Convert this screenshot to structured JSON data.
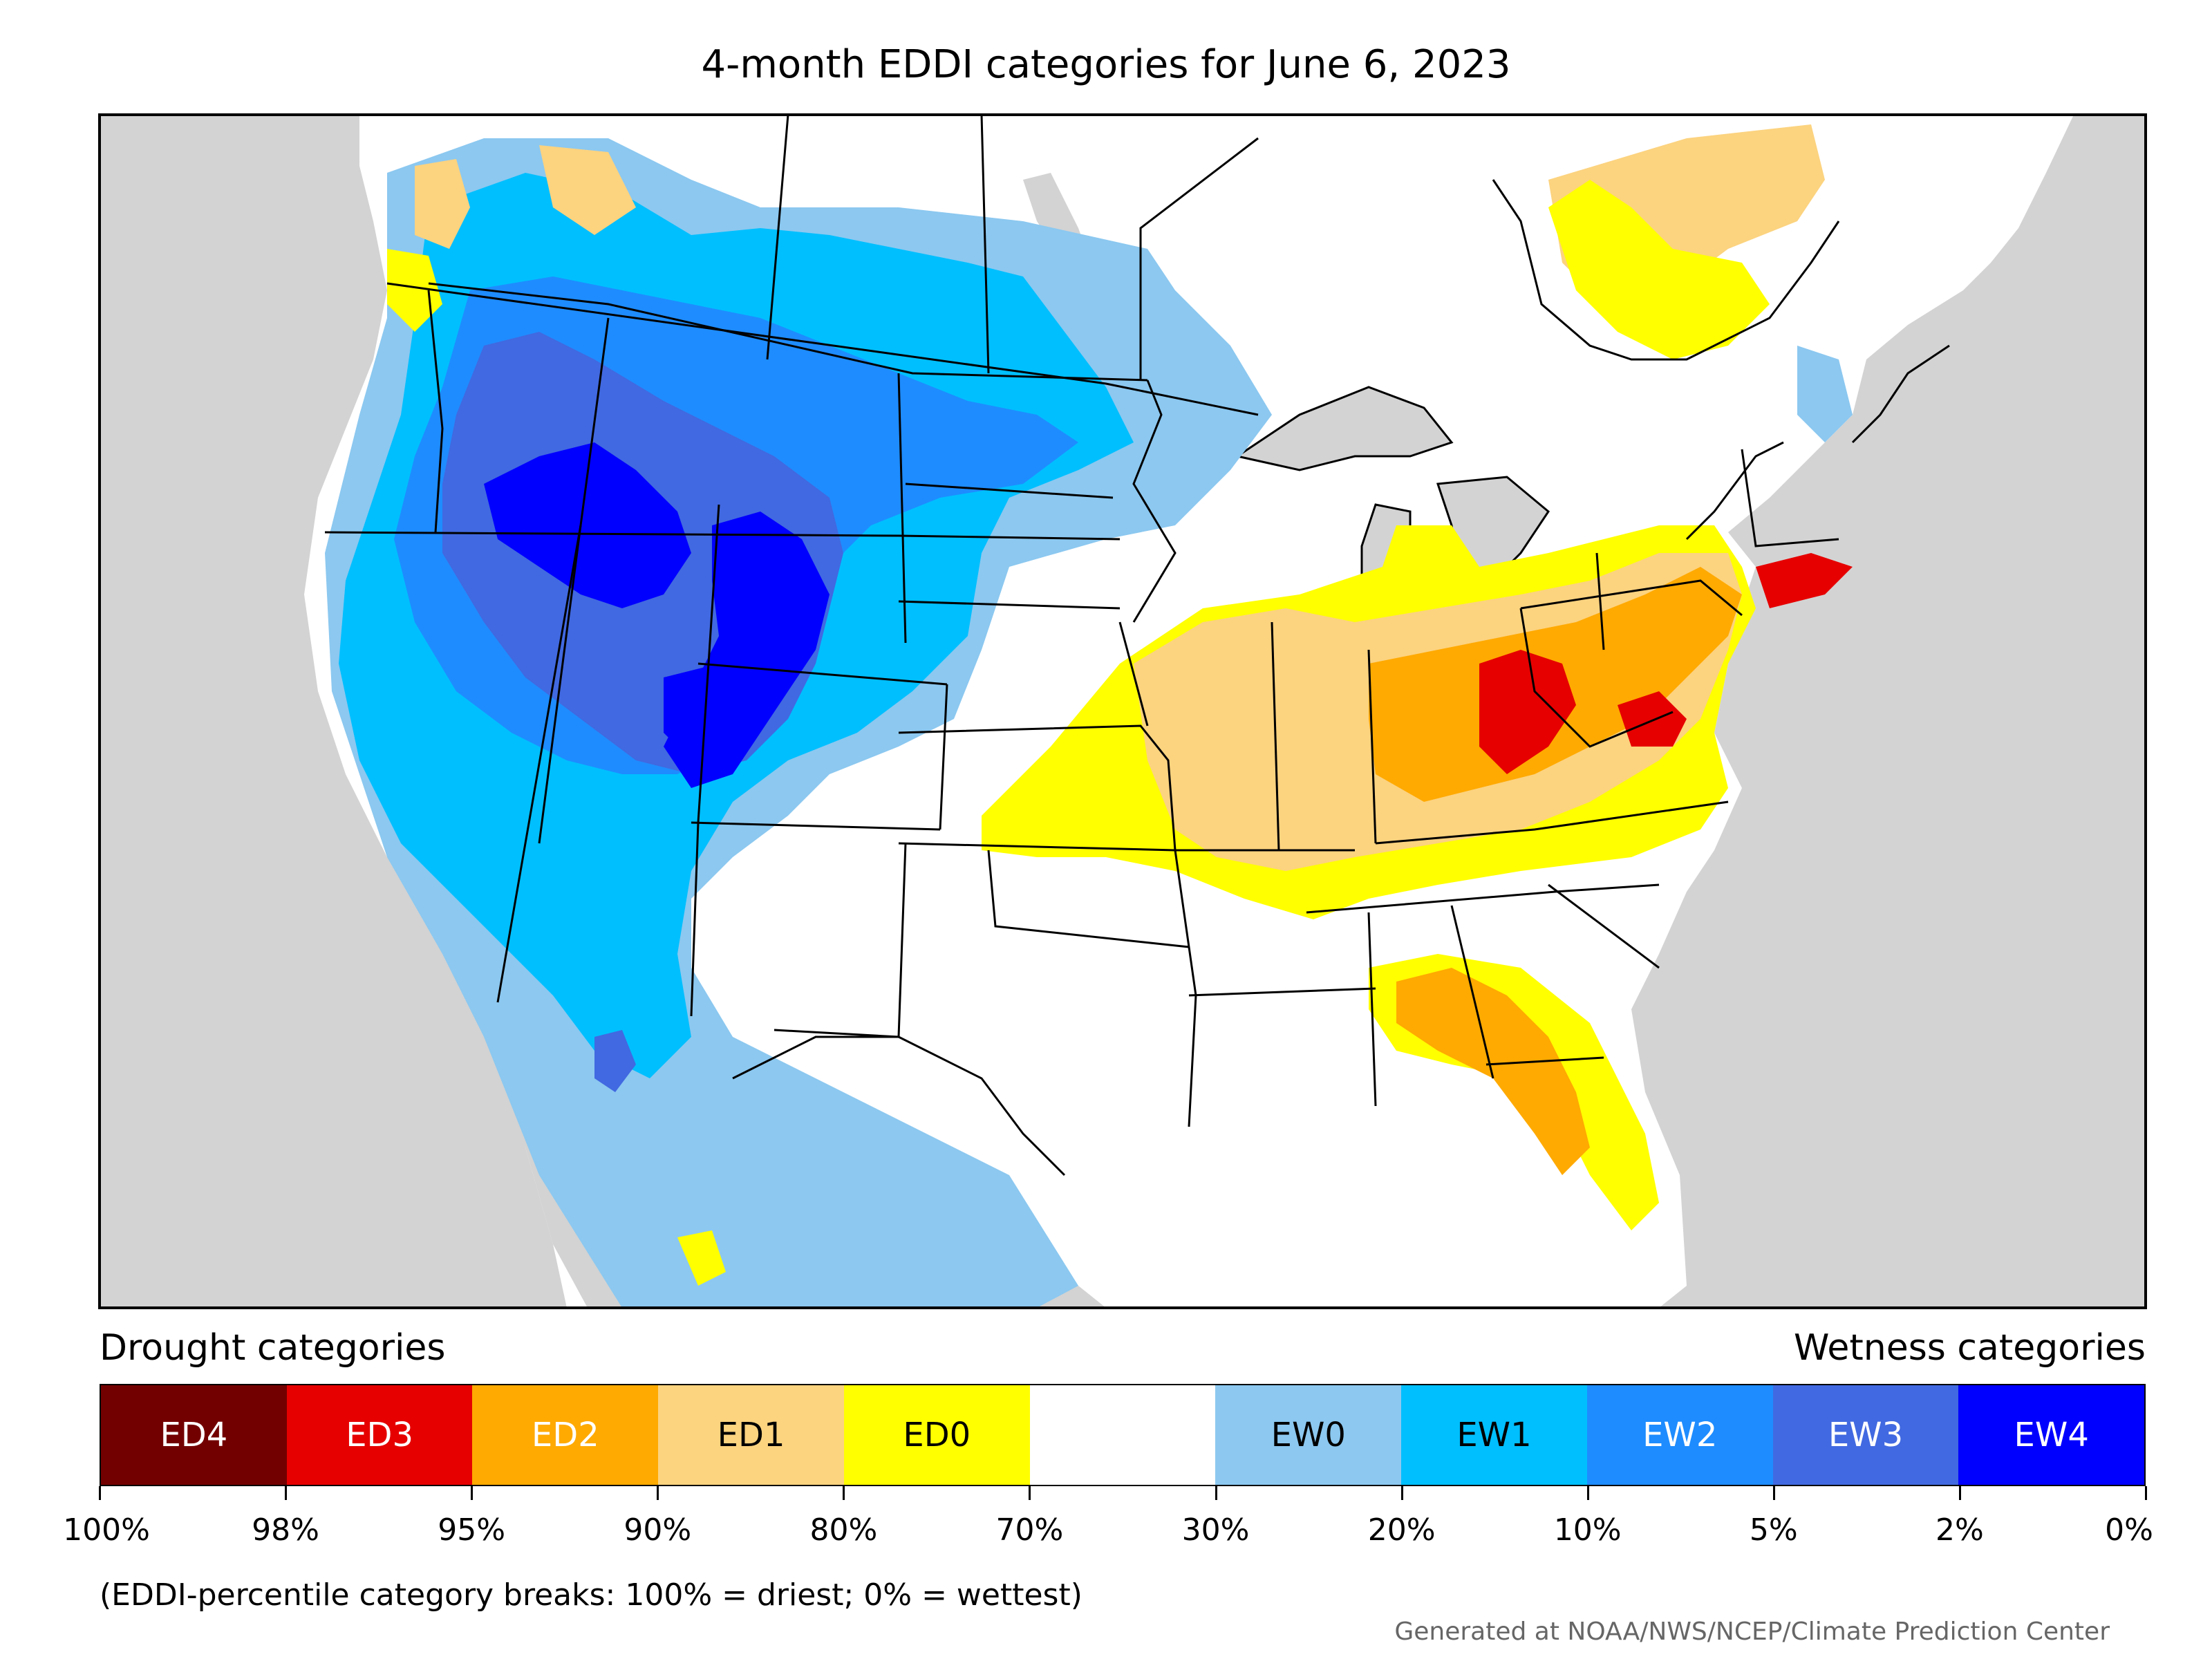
{
  "title": "4-month EDDI categories for June 6, 2023",
  "legend": {
    "left_heading": "Drought categories",
    "right_heading": "Wetness categories",
    "categories": [
      {
        "label": "ED4",
        "color": "#730000",
        "text_color": "#ffffff"
      },
      {
        "label": "ED3",
        "color": "#e60000",
        "text_color": "#ffffff"
      },
      {
        "label": "ED2",
        "color": "#ffaa00",
        "text_color": "#ffffff"
      },
      {
        "label": "ED1",
        "color": "#fcd37f",
        "text_color": "#000000"
      },
      {
        "label": "ED0",
        "color": "#ffff00",
        "text_color": "#000000"
      },
      {
        "label": "",
        "color": "#ffffff",
        "text_color": "#000000"
      },
      {
        "label": "EW0",
        "color": "#8cc8f0",
        "text_color": "#000000"
      },
      {
        "label": "EW1",
        "color": "#00bfff",
        "text_color": "#000000"
      },
      {
        "label": "EW2",
        "color": "#1e8cff",
        "text_color": "#ffffff"
      },
      {
        "label": "EW3",
        "color": "#4169e1",
        "text_color": "#ffffff"
      },
      {
        "label": "EW4",
        "color": "#0000ff",
        "text_color": "#ffffff"
      }
    ],
    "ticks": [
      "100%",
      "98%",
      "95%",
      "90%",
      "80%",
      "70%",
      "30%",
      "20%",
      "10%",
      "5%",
      "2%",
      "0%"
    ]
  },
  "note": "(EDDI-percentile category breaks: 100% = driest; 0% = wettest)",
  "credit": "Generated at NOAA/NWS/NCEP/Climate Prediction Center",
  "colors": {
    "ocean": "#d3d3d3",
    "land": "#ffffff",
    "border": "#000000"
  }
}
